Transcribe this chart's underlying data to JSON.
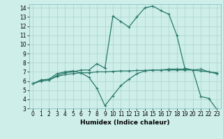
{
  "title": "",
  "xlabel": "Humidex (Indice chaleur)",
  "bg_color": "#cdeee9",
  "grid_color": "#b0d8d0",
  "line_color": "#2a7a6a",
  "xlim": [
    -0.5,
    23.5
  ],
  "ylim": [
    3,
    14.4
  ],
  "xticks": [
    0,
    1,
    2,
    3,
    4,
    5,
    6,
    7,
    8,
    9,
    10,
    11,
    12,
    13,
    14,
    15,
    16,
    17,
    18,
    19,
    20,
    21,
    22,
    23
  ],
  "yticks": [
    3,
    4,
    5,
    6,
    7,
    8,
    9,
    10,
    11,
    12,
    13,
    14
  ],
  "line1_x": [
    0,
    1,
    2,
    3,
    4,
    5,
    6,
    7,
    8,
    9,
    10,
    11,
    12,
    13,
    14,
    15,
    16,
    17,
    18,
    19,
    20,
    21,
    22,
    23
  ],
  "line1_y": [
    5.7,
    6.1,
    6.1,
    6.6,
    6.9,
    7.0,
    7.2,
    7.2,
    7.9,
    7.4,
    13.1,
    12.5,
    11.9,
    13.0,
    14.0,
    14.2,
    13.7,
    13.3,
    11.0,
    7.4,
    7.2,
    7.3,
    7.0,
    6.8
  ],
  "line2_x": [
    0,
    1,
    2,
    3,
    4,
    5,
    6,
    7,
    8,
    9,
    10,
    11,
    12,
    13,
    14,
    15,
    16,
    17,
    18,
    19,
    20,
    21,
    22,
    23
  ],
  "line2_y": [
    5.7,
    6.1,
    6.2,
    6.8,
    7.0,
    7.1,
    6.9,
    6.4,
    5.2,
    3.3,
    4.4,
    5.5,
    6.2,
    6.8,
    7.1,
    7.2,
    7.2,
    7.3,
    7.3,
    7.3,
    7.2,
    4.3,
    4.1,
    2.9
  ],
  "line3_x": [
    0,
    1,
    2,
    3,
    4,
    5,
    6,
    7,
    8,
    9,
    10,
    11,
    12,
    13,
    14,
    15,
    16,
    17,
    18,
    19,
    20,
    21,
    22,
    23
  ],
  "line3_y": [
    5.7,
    6.0,
    6.1,
    6.5,
    6.7,
    6.8,
    6.9,
    6.9,
    7.0,
    7.0,
    7.05,
    7.1,
    7.1,
    7.15,
    7.15,
    7.2,
    7.2,
    7.2,
    7.2,
    7.2,
    7.2,
    7.1,
    7.0,
    6.9
  ],
  "tick_fontsize": 5.5,
  "xlabel_fontsize": 6.5
}
